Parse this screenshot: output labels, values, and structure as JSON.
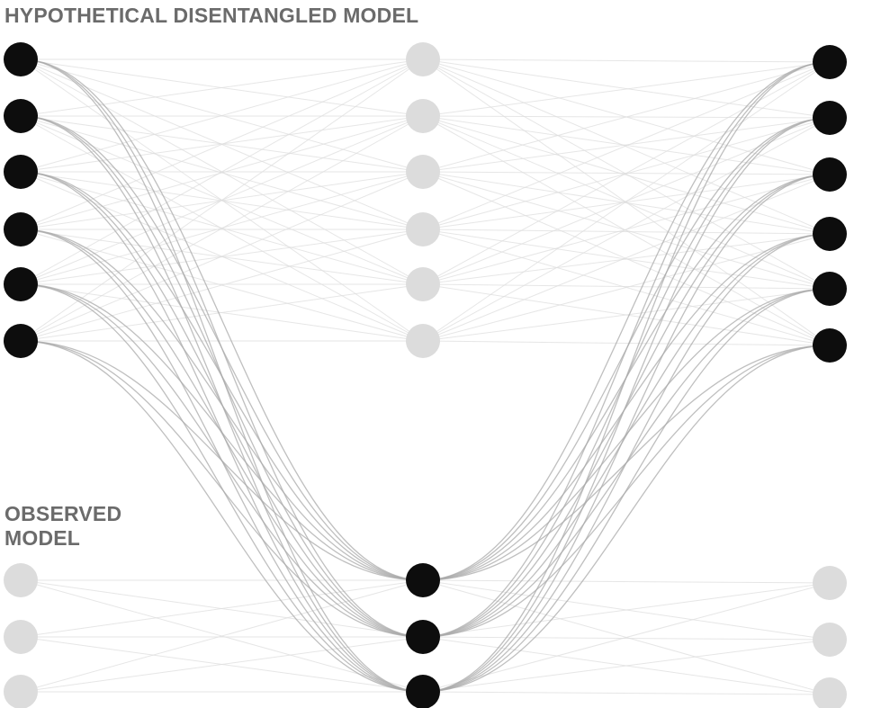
{
  "labels": {
    "hypothetical": "HYPOTHETICAL DISENTANGLED MODEL",
    "observed_line1": "OBSERVED",
    "observed_line2": "MODEL"
  },
  "colors": {
    "active_node": "#0d0d0d",
    "inactive_node": "#dcdcdc",
    "faint_edge": "#dedede",
    "active_edge": "#a9a9a9",
    "label": "#6b6b6b"
  },
  "network": {
    "hypothetical": {
      "left_nodes": 6,
      "middle_nodes": 6,
      "right_nodes": 6,
      "active_columns": [
        "left",
        "right"
      ]
    },
    "observed": {
      "left_nodes": 3,
      "middle_nodes": 3,
      "right_nodes": 3,
      "active_columns": [
        "middle"
      ]
    }
  }
}
